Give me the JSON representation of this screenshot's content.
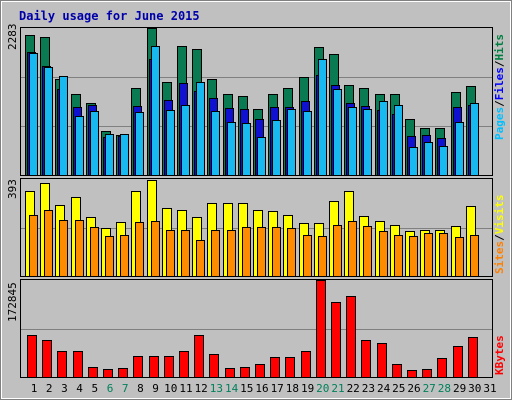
{
  "chart_data": {
    "type": "bar",
    "title": "Daily usage for June 2015",
    "categories": [
      "1",
      "2",
      "3",
      "4",
      "5",
      "6",
      "7",
      "8",
      "9",
      "10",
      "11",
      "12",
      "13",
      "14",
      "15",
      "16",
      "17",
      "18",
      "19",
      "20",
      "21",
      "22",
      "23",
      "24",
      "25",
      "26",
      "27",
      "28",
      "29",
      "30",
      "31"
    ],
    "weekend_days": [
      "6",
      "7",
      "13",
      "14",
      "20",
      "21",
      "27",
      "28"
    ],
    "panels": [
      {
        "id": "hits-files-pages",
        "ymax_label": "2283",
        "ymax": 2283,
        "legend": [
          {
            "name": "Pages",
            "color": "#00c0ff"
          },
          {
            "name": "Files",
            "color": "#0000ff"
          },
          {
            "name": "Hits",
            "color": "#008040"
          }
        ],
        "series": [
          {
            "name": "Hits",
            "color": "#0a7a52",
            "values": [
              2180,
              2140,
              1500,
              1260,
              1120,
              700,
              640,
              1350,
              2280,
              1450,
              2010,
              1960,
              1500,
              1270,
              1240,
              1040,
              1260,
              1360,
              1520,
              1990,
              1880,
              1400,
              1350,
              1260,
              1270,
              880,
              740,
              740,
              1290,
              1390,
              0
            ]
          },
          {
            "name": "Files",
            "color": "#1010d0",
            "values": [
              1910,
              1700,
              1340,
              1060,
              1090,
              600,
              610,
              1080,
              1800,
              1170,
              1440,
              1310,
              1200,
              1050,
              1040,
              880,
              1070,
              1060,
              1150,
              1560,
              1410,
              1130,
              1080,
              1020,
              960,
              610,
              630,
              590,
              1070,
              1100,
              0
            ]
          },
          {
            "name": "Pages",
            "color": "#18b8f0",
            "values": [
              1900,
              1680,
              1550,
              920,
              1010,
              650,
              650,
              980,
              2000,
              1020,
              1100,
              1450,
              1000,
              830,
              820,
              600,
              870,
              1040,
              1000,
              1800,
              1340,
              1060,
              1030,
              1150,
              1090,
              450,
              520,
              470,
              830,
              1130,
              0
            ]
          }
        ]
      },
      {
        "id": "visits-sites",
        "ymax_label": "393",
        "ymax": 393,
        "legend": [
          {
            "name": "Sites",
            "color": "#ff8000"
          },
          {
            "name": "Visits",
            "color": "#ffff00"
          }
        ],
        "series": [
          {
            "name": "Visits",
            "color": "#ffff00",
            "values": [
              345,
              375,
              290,
              320,
              240,
              195,
              220,
              345,
              390,
              275,
              270,
              240,
              295,
              295,
              295,
              270,
              265,
              250,
              215,
              215,
              305,
              345,
              245,
              225,
              210,
              185,
              190,
              190,
              205,
              285,
              0
            ]
          },
          {
            "name": "Sites",
            "color": "#ff8c00",
            "values": [
              250,
              270,
              230,
              230,
              200,
              165,
              170,
              220,
              225,
              190,
              190,
              150,
              190,
              190,
              200,
              200,
              200,
              195,
              170,
              165,
              210,
              225,
              205,
              185,
              170,
              165,
              175,
              175,
              160,
              170,
              0
            ]
          }
        ]
      },
      {
        "id": "kbytes",
        "ymax_label": "172845",
        "ymax": 172845,
        "legend": [
          {
            "name": "KBytes",
            "color": "#ff0000"
          }
        ],
        "series": [
          {
            "name": "KBytes",
            "color": "#ff0000",
            "values": [
              75000,
              67000,
              47000,
              47000,
              19000,
              15000,
              18000,
              39000,
              38000,
              39000,
              47000,
              76000,
              42000,
              17000,
              20000,
              24000,
              37000,
              37000,
              47000,
              172845,
              134000,
              145000,
              67000,
              61000,
              25000,
              14000,
              15000,
              36000,
              56000,
              72000,
              0
            ]
          }
        ]
      }
    ]
  }
}
